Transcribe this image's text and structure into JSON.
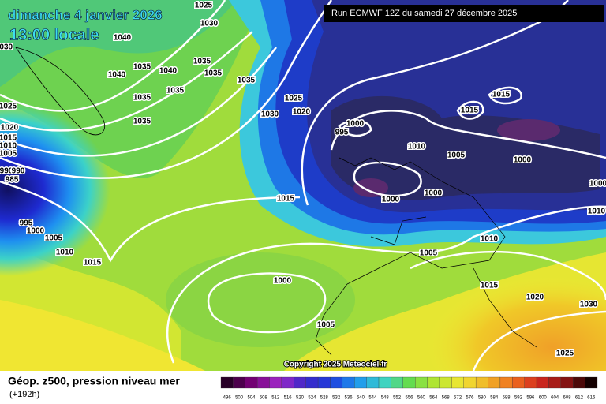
{
  "header": {
    "date": "dimanche 4 janvier 2026",
    "time": "13:00 locale",
    "run": "Run ECMWF 12Z du samedi 27 décembre 2025"
  },
  "isobar_labels": [
    1025,
    1030,
    1030,
    1040,
    1035,
    1040,
    1040,
    1035,
    1035,
    1035,
    1035,
    1035,
    1035,
    1025,
    1020,
    1015,
    1010,
    1005,
    990,
    990,
    985,
    995,
    1000,
    1005,
    1010,
    1015,
    1025,
    1030,
    1020,
    1000,
    995,
    1010,
    1005,
    1015,
    1015,
    1000,
    1000,
    1010,
    1000,
    1000,
    1015,
    1010,
    1005,
    1000,
    1015,
    1020,
    1030,
    1005,
    1025
  ],
  "footer": {
    "title": "Géop. z500, pression niveau mer",
    "step": "(+192h)",
    "copyright": "Copyright 2025 Meteociel.fr"
  },
  "colorbar": {
    "ticks": [
      496,
      500,
      504,
      508,
      512,
      516,
      520,
      524,
      528,
      532,
      536,
      540,
      544,
      548,
      552,
      556,
      560,
      564,
      568,
      572,
      576,
      580,
      584,
      588,
      592,
      596,
      600,
      604,
      608,
      612,
      616
    ]
  }
}
